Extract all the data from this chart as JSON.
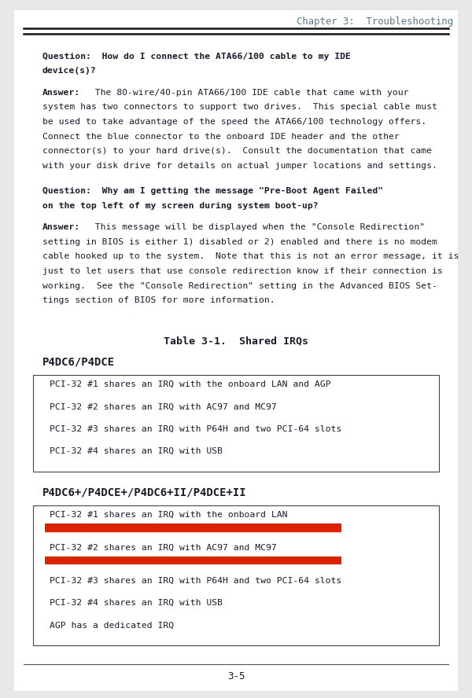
{
  "bg_color": "#e8e8e8",
  "page_bg": "#ffffff",
  "chapter_header": "Chapter 3:  Troubleshooting",
  "header_color": "#5a7a8a",
  "table_title": "Table 3-1.  Shared IRQs",
  "section1_header": "P4DC6/P4DCE",
  "section1_rows": [
    "PCI-32 #1 shares an IRQ with the onboard LAN and AGP",
    "PCI-32 #2 shares an IRQ with AC97 and MC97",
    "PCI-32 #3 shares an IRQ with P64H and two PCI-64 slots",
    "PCI-32 #4 shares an IRQ with USB"
  ],
  "section2_header": "P4DC6+/P4DCE+/P4DC6+II/P4DCE+II",
  "section2_rows": [
    "PCI-32 #1 shares an IRQ with the onboard LAN",
    "PCI-32 #2 shares an IRQ with AC97 and MC97",
    "PCI-32 #3 shares an IRQ with P64H and two PCI-64 slots",
    "PCI-32 #4 shares an IRQ with USB",
    "AGP has a dedicated IRQ"
  ],
  "section2_highlights": [
    true,
    true,
    false,
    false,
    false
  ],
  "highlight_color": "#dd2200",
  "page_number": "3-5",
  "text_color": "#1a1a2e",
  "box_border_color": "#444444",
  "font_size_body": 8.2,
  "font_size_chapter": 8.8,
  "font_size_table_title": 9.5,
  "font_size_section": 10.0
}
